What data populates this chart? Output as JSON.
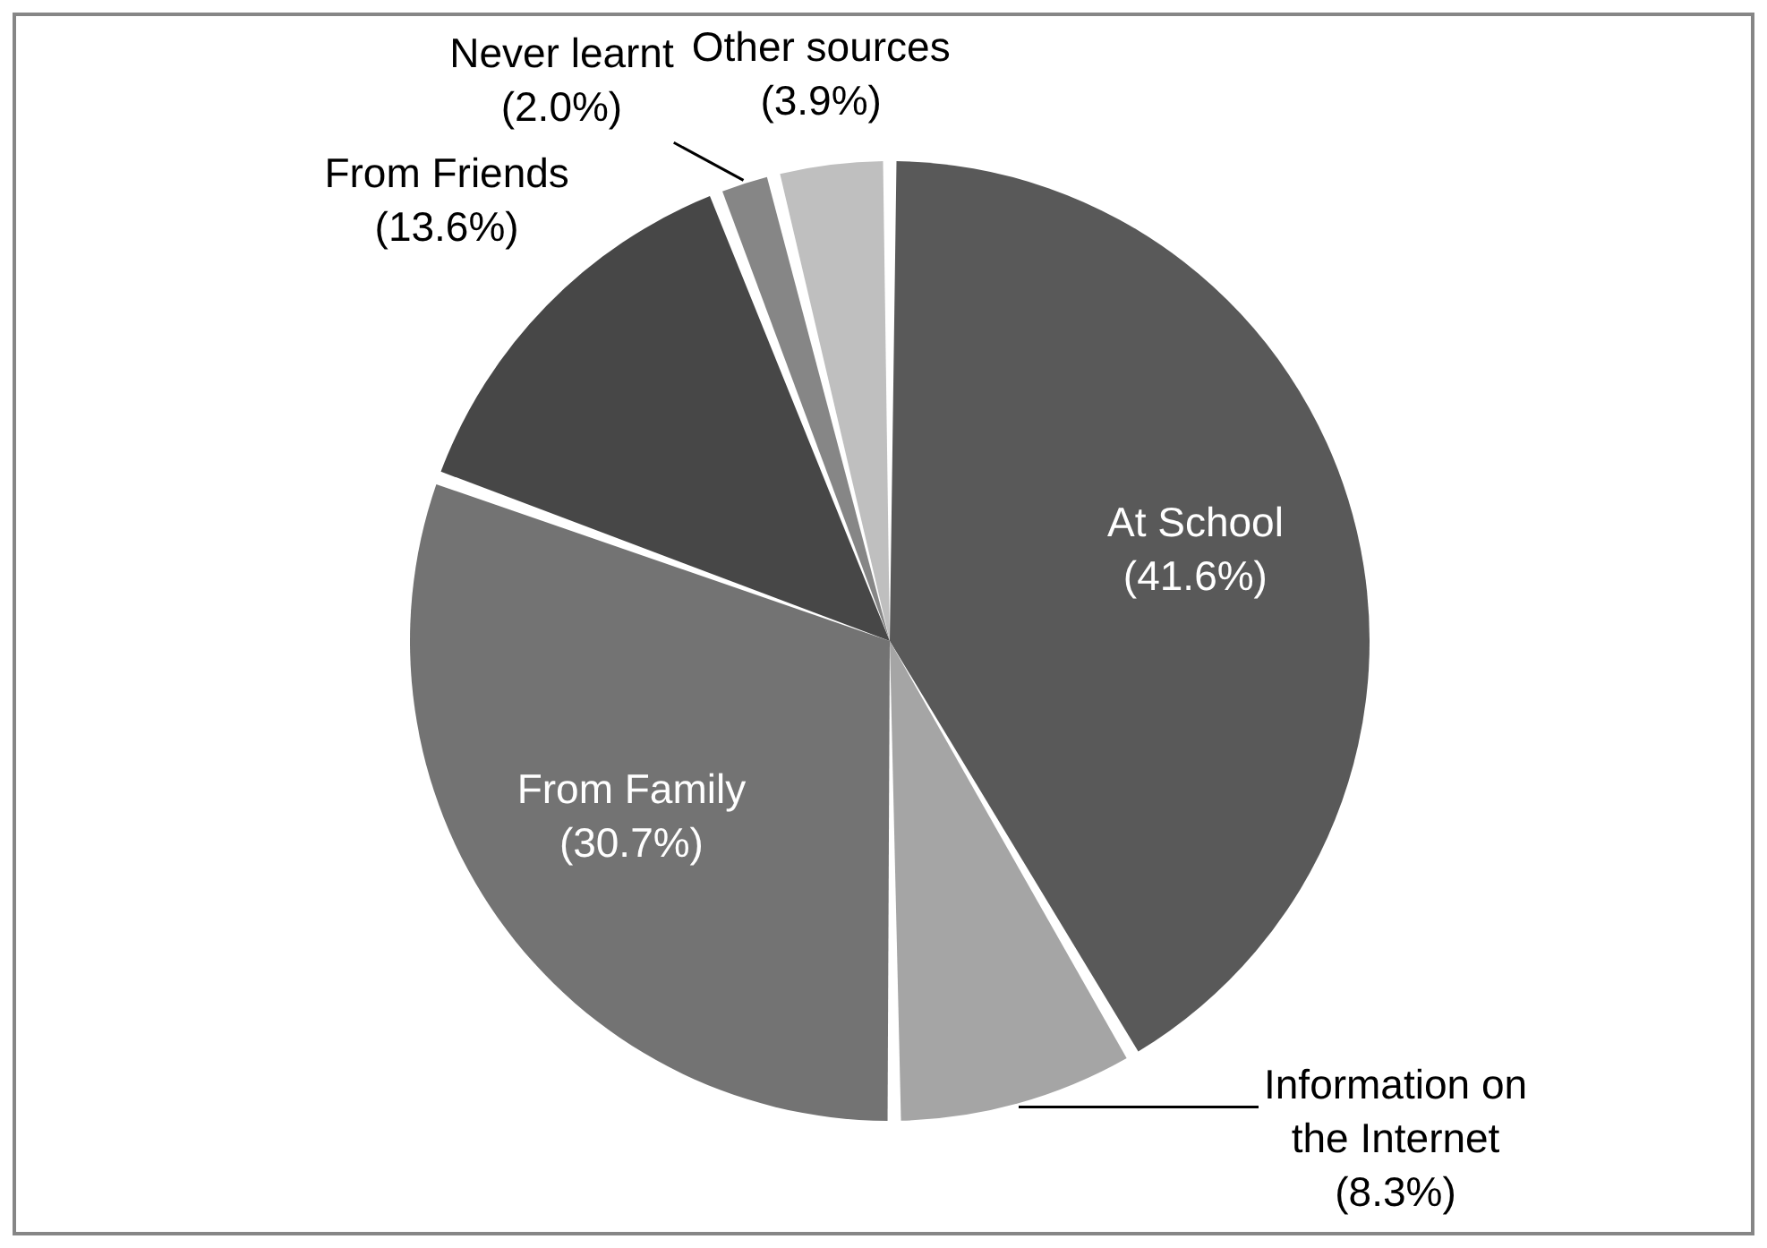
{
  "chart_data": {
    "type": "pie",
    "categories": [
      "At School",
      "Information on the Internet",
      "From Family",
      "From Friends",
      "Never learnt",
      "Other sources"
    ],
    "values": [
      41.6,
      8.3,
      30.7,
      13.6,
      2.0,
      3.9
    ],
    "colors": [
      "#595959",
      "#a5a5a5",
      "#737373",
      "#474747",
      "#868686",
      "#bfbfbf"
    ],
    "value_labels": [
      "(41.6%)",
      "(8.3%)",
      "(30.7%)",
      "(13.6%)",
      "(2.0%)",
      "(3.9%)"
    ]
  }
}
